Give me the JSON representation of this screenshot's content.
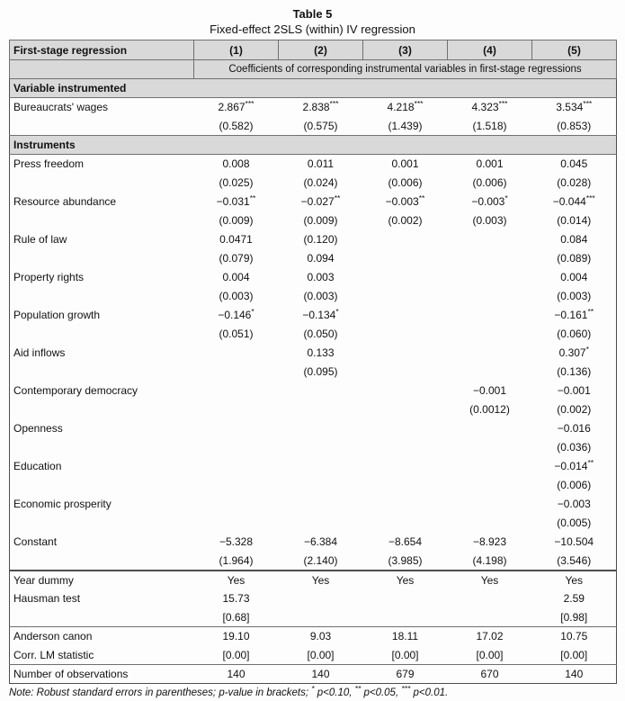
{
  "page": {
    "title": "Table 5",
    "subtitle": "Fixed-effect 2SLS (within) IV regression"
  },
  "table": {
    "header": {
      "label": "First-stage regression",
      "columns": [
        "(1)",
        "(2)",
        "(3)",
        "(4)",
        "(5)"
      ]
    },
    "subheader": "Coefficients of corresponding instrumental variables in first-stage regressions",
    "rows": [
      {
        "type": "section",
        "label": "Variable instrumented"
      },
      {
        "type": "data",
        "label": "Bureaucrats' wages",
        "cells": [
          "2.867***",
          "2.838***",
          "4.218***",
          "4.323***",
          "3.534***"
        ]
      },
      {
        "type": "data",
        "label": "",
        "cells": [
          "(0.582)",
          "(0.575)",
          "(1.439)",
          "(1.518)",
          "(0.853)"
        ]
      },
      {
        "type": "section",
        "label": "Instruments"
      },
      {
        "type": "data",
        "label": "Press freedom",
        "cells": [
          "0.008",
          "0.011",
          "0.001",
          "0.001",
          "0.045"
        ]
      },
      {
        "type": "data",
        "label": "",
        "cells": [
          "(0.025)",
          "(0.024)",
          "(0.006)",
          "(0.006)",
          "(0.028)"
        ]
      },
      {
        "type": "data",
        "label": "Resource abundance",
        "cells": [
          "−0.031**",
          "−0.027**",
          "−0.003**",
          "−0.003*",
          "−0.044***"
        ]
      },
      {
        "type": "data",
        "label": "",
        "cells": [
          "(0.009)",
          "(0.009)",
          "(0.002)",
          "(0.003)",
          "(0.014)"
        ]
      },
      {
        "type": "data",
        "label": "Rule of law",
        "cells": [
          "0.0471",
          "(0.120)",
          "",
          "",
          "0.084"
        ]
      },
      {
        "type": "data",
        "label": "",
        "cells": [
          "(0.079)",
          "0.094",
          "",
          "",
          "(0.089)"
        ]
      },
      {
        "type": "data",
        "label": "Property rights",
        "cells": [
          "0.004",
          "0.003",
          "",
          "",
          "0.004"
        ]
      },
      {
        "type": "data",
        "label": "",
        "cells": [
          "(0.003)",
          "(0.003)",
          "",
          "",
          "(0.003)"
        ]
      },
      {
        "type": "data",
        "label": "Population growth",
        "cells": [
          "−0.146*",
          "−0.134*",
          "",
          "",
          "−0.161**"
        ]
      },
      {
        "type": "data",
        "label": "",
        "cells": [
          "(0.051)",
          "(0.050)",
          "",
          "",
          "(0.060)"
        ]
      },
      {
        "type": "data",
        "label": "Aid inflows",
        "cells": [
          "",
          "0.133",
          "",
          "",
          "0.307*"
        ]
      },
      {
        "type": "data",
        "label": "",
        "cells": [
          "",
          "(0.095)",
          "",
          "",
          "(0.136)"
        ]
      },
      {
        "type": "data",
        "label": "Contemporary democracy",
        "cells": [
          "",
          "",
          "",
          "−0.001",
          "−0.001"
        ]
      },
      {
        "type": "data",
        "label": "",
        "cells": [
          "",
          "",
          "",
          "(0.0012)",
          "(0.002)"
        ]
      },
      {
        "type": "data",
        "label": "Openness",
        "cells": [
          "",
          "",
          "",
          "",
          "−0.016"
        ]
      },
      {
        "type": "data",
        "label": "",
        "cells": [
          "",
          "",
          "",
          "",
          "(0.036)"
        ]
      },
      {
        "type": "data",
        "label": "Education",
        "cells": [
          "",
          "",
          "",
          "",
          "−0.014**"
        ]
      },
      {
        "type": "data",
        "label": "",
        "cells": [
          "",
          "",
          "",
          "",
          "(0.006)"
        ]
      },
      {
        "type": "data",
        "label": "Economic prosperity",
        "cells": [
          "",
          "",
          "",
          "",
          "−0.003"
        ]
      },
      {
        "type": "data",
        "label": "",
        "cells": [
          "",
          "",
          "",
          "",
          "(0.005)"
        ]
      },
      {
        "type": "data",
        "label": "Constant",
        "cells": [
          "−5.328",
          "−6.384",
          "−8.654",
          "−8.923",
          "−10.504"
        ]
      },
      {
        "type": "data",
        "label": "",
        "cells": [
          "(1.964)",
          "(2.140)",
          "(3.985)",
          "(4.198)",
          "(3.546)"
        ]
      },
      {
        "type": "stat",
        "rule": "thick",
        "label": "Year dummy",
        "cells": [
          "Yes",
          "Yes",
          "Yes",
          "Yes",
          "Yes"
        ]
      },
      {
        "type": "stat",
        "label": "Hausman test",
        "cells": [
          "15.73",
          "",
          "",
          "",
          "2.59"
        ]
      },
      {
        "type": "stat",
        "label": "",
        "cells": [
          "[0.68]",
          "",
          "",
          "",
          "[0.98]"
        ]
      },
      {
        "type": "stat",
        "rule": "thin",
        "label": "Anderson canon",
        "cells": [
          "19.10",
          "9.03",
          "18.11",
          "17.02",
          "10.75"
        ]
      },
      {
        "type": "stat",
        "label": "Corr. LM statistic",
        "cells": [
          "[0.00]",
          "[0.00]",
          "[0.00]",
          "[0.00]",
          "[0.00]"
        ]
      },
      {
        "type": "stat",
        "rule": "thin",
        "label": "Number of observations",
        "cells": [
          "140",
          "140",
          "679",
          "670",
          "140"
        ]
      }
    ],
    "note_segments": [
      {
        "text": "Note: Robust standard errors in parentheses; p-value in brackets; "
      },
      {
        "sup": "*"
      },
      {
        "text": " p<0.10, "
      },
      {
        "sup": "**"
      },
      {
        "text": " p<0.05, "
      },
      {
        "sup": "***"
      },
      {
        "text": " p<0.01."
      }
    ]
  },
  "colors": {
    "header_bg": "#d9d9d9",
    "border": "#4d4d4d",
    "background": "#fdfdfd"
  }
}
